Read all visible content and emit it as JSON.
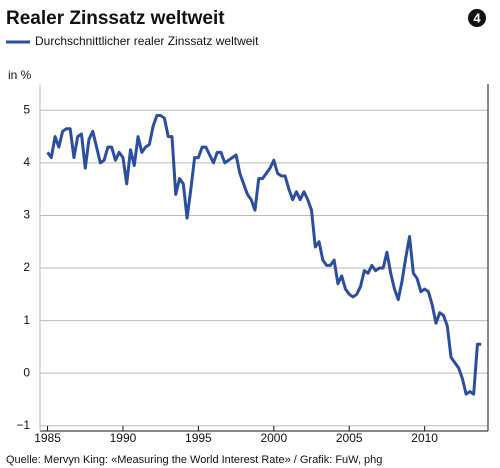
{
  "chart_data": {
    "type": "line",
    "title": "Realer Zinssatz weltweit",
    "badge": "4",
    "ylabel": "in %",
    "source": "Quelle: Mervyn King: «Measuring the World Interest Rate» / Grafik: FuW, phg",
    "xlim": [
      1984.5,
      2014.2
    ],
    "ylim": [
      -1.1,
      5.5
    ],
    "xticks": [
      1985,
      1990,
      1995,
      2000,
      2005,
      2010
    ],
    "yticks": [
      {
        "value": -1,
        "label": "−1"
      },
      0,
      1,
      2,
      3,
      4,
      5
    ],
    "grid": true,
    "x": [
      1985,
      1985.25,
      1985.5,
      1985.75,
      1986,
      1986.25,
      1986.5,
      1986.75,
      1987,
      1987.25,
      1987.5,
      1987.75,
      1988,
      1988.25,
      1988.5,
      1988.75,
      1989,
      1989.25,
      1989.5,
      1989.75,
      1990,
      1990.25,
      1990.5,
      1990.75,
      1991,
      1991.25,
      1991.5,
      1991.75,
      1992,
      1992.25,
      1992.5,
      1992.75,
      1993,
      1993.25,
      1993.5,
      1993.75,
      1994,
      1994.25,
      1994.5,
      1994.75,
      1995,
      1995.25,
      1995.5,
      1995.75,
      1996,
      1996.25,
      1996.5,
      1996.75,
      1997,
      1997.25,
      1997.5,
      1997.75,
      1998,
      1998.25,
      1998.5,
      1998.75,
      1999,
      1999.25,
      1999.5,
      1999.75,
      2000,
      2000.25,
      2000.5,
      2000.75,
      2001,
      2001.25,
      2001.5,
      2001.75,
      2002,
      2002.25,
      2002.5,
      2002.75,
      2003,
      2003.25,
      2003.5,
      2003.75,
      2004,
      2004.25,
      2004.5,
      2004.75,
      2005,
      2005.25,
      2005.5,
      2005.75,
      2006,
      2006.25,
      2006.5,
      2006.75,
      2007,
      2007.25,
      2007.5,
      2007.75,
      2008,
      2008.25,
      2008.5,
      2008.75,
      2009,
      2009.25,
      2009.5,
      2009.75,
      2010,
      2010.25,
      2010.5,
      2010.75,
      2011,
      2011.25,
      2011.5,
      2011.75,
      2012,
      2012.25,
      2012.5,
      2012.75,
      2013,
      2013.25,
      2013.5,
      2013.75
    ],
    "series": [
      {
        "name": "Durchschnittlicher realer Zinssatz weltweit",
        "color": "#2b4f9e",
        "values": [
          4.2,
          4.1,
          4.5,
          4.3,
          4.6,
          4.65,
          4.65,
          4.1,
          4.5,
          4.55,
          3.9,
          4.45,
          4.6,
          4.3,
          4.0,
          4.05,
          4.3,
          4.3,
          4.05,
          4.2,
          4.1,
          3.6,
          4.25,
          3.95,
          4.5,
          4.2,
          4.3,
          4.35,
          4.7,
          4.9,
          4.9,
          4.85,
          4.5,
          4.5,
          3.4,
          3.7,
          3.6,
          2.95,
          3.5,
          4.1,
          4.1,
          4.3,
          4.3,
          4.15,
          4.0,
          4.2,
          4.2,
          4.0,
          4.05,
          4.1,
          4.15,
          3.8,
          3.6,
          3.4,
          3.3,
          3.1,
          3.7,
          3.7,
          3.8,
          3.9,
          4.05,
          3.8,
          3.75,
          3.75,
          3.5,
          3.3,
          3.45,
          3.3,
          3.45,
          3.3,
          3.1,
          2.4,
          2.5,
          2.15,
          2.05,
          2.05,
          2.15,
          1.7,
          1.85,
          1.6,
          1.5,
          1.45,
          1.5,
          1.65,
          1.95,
          1.9,
          2.05,
          1.95,
          2.0,
          2.0,
          2.3,
          1.9,
          1.6,
          1.4,
          1.75,
          2.2,
          2.6,
          1.9,
          1.8,
          1.55,
          1.6,
          1.55,
          1.3,
          0.95,
          1.15,
          1.1,
          0.9,
          0.3,
          0.2,
          0.1,
          -0.1,
          -0.4,
          -0.35,
          -0.4,
          0.55,
          0.55
        ]
      }
    ]
  }
}
